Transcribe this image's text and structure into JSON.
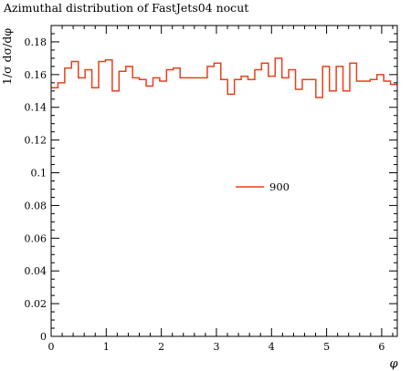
{
  "chart_data": {
    "type": "line",
    "title": "Azimuthal distribution of FastJets04 nocut",
    "xlabel": "φ",
    "ylabel": "1/σ dσ/dφ",
    "xlim": [
      0,
      6.2832
    ],
    "ylim": [
      0,
      0.19
    ],
    "xticks": [
      0,
      1,
      2,
      3,
      4,
      5,
      6
    ],
    "xtick_labels": [
      "0",
      "1",
      "2",
      "3",
      "4",
      "5",
      "6"
    ],
    "yticks": [
      0,
      0.02,
      0.04,
      0.06,
      0.08,
      0.1,
      0.12,
      0.14,
      0.16,
      0.18
    ],
    "ytick_labels": [
      "0",
      "0.02",
      "0.04",
      "0.06",
      "0.08",
      "0.1",
      "0.12",
      "0.14",
      "0.16",
      "0.18"
    ],
    "legend_position": "center-right",
    "series": [
      {
        "name": "900",
        "color": "#e8401c",
        "style": "step",
        "values": [
          0.152,
          0.155,
          0.164,
          0.168,
          0.158,
          0.163,
          0.152,
          0.168,
          0.169,
          0.15,
          0.162,
          0.165,
          0.158,
          0.157,
          0.153,
          0.158,
          0.156,
          0.163,
          0.164,
          0.158,
          0.158,
          0.158,
          0.158,
          0.165,
          0.167,
          0.157,
          0.148,
          0.157,
          0.159,
          0.157,
          0.163,
          0.167,
          0.159,
          0.17,
          0.158,
          0.163,
          0.151,
          0.157,
          0.157,
          0.146,
          0.165,
          0.15,
          0.165,
          0.15,
          0.167,
          0.156,
          0.156,
          0.157,
          0.16,
          0.156,
          0.154
        ]
      }
    ]
  }
}
